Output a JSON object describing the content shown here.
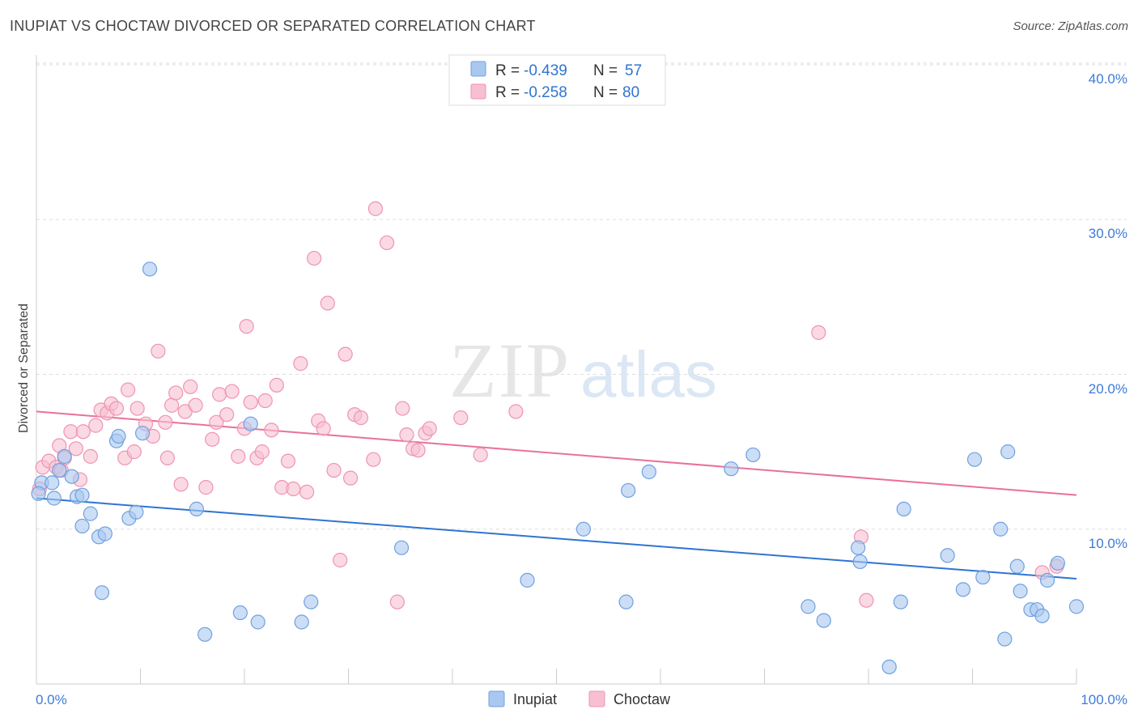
{
  "header": {
    "title": "INUPIAT VS CHOCTAW DIVORCED OR SEPARATED CORRELATION CHART",
    "source": "Source: ZipAtlas.com"
  },
  "watermark": {
    "zip": "ZIP",
    "atlas": "atlas"
  },
  "colors": {
    "inupiat_fill": "#a9c8f0",
    "inupiat_stroke": "#6fa0e0",
    "inupiat_line": "#2f74d0",
    "choctaw_fill": "#f7bfd1",
    "choctaw_stroke": "#ef93b2",
    "choctaw_line": "#e8719a",
    "tick_label": "#3d7bd8",
    "grid": "#dddddd"
  },
  "legend_top": {
    "rows": [
      {
        "r_label": "R =",
        "r_value": "-0.439",
        "n_label": "N =",
        "n_value": "57"
      },
      {
        "r_label": "R =",
        "r_value": "-0.258",
        "n_label": "N =",
        "n_value": "80"
      }
    ]
  },
  "chart_data": {
    "type": "scatter",
    "title": "INUPIAT VS CHOCTAW DIVORCED OR SEPARATED CORRELATION CHART",
    "xlabel": "",
    "ylabel": "Divorced or Separated",
    "xlim": [
      0,
      100
    ],
    "ylim": [
      0,
      40.8
    ],
    "x_tick_labels": [
      "0.0%",
      "100.0%"
    ],
    "y_ticks": [
      10,
      20,
      30,
      40
    ],
    "y_tick_labels": [
      "10.0%",
      "20.0%",
      "30.0%",
      "40.0%"
    ],
    "grid": true,
    "legend": [
      "Inupiat",
      "Choctaw"
    ],
    "legend_position": "bottom-center",
    "series": [
      {
        "name": "Inupiat",
        "r": -0.439,
        "n": 57,
        "trend": {
          "x": [
            0,
            100
          ],
          "y": [
            12.0,
            6.8
          ]
        },
        "points": [
          [
            0.5,
            13.0
          ],
          [
            1.5,
            13.0
          ],
          [
            1.7,
            12.0
          ],
          [
            2.2,
            13.8
          ],
          [
            2.7,
            14.7
          ],
          [
            3.4,
            13.4
          ],
          [
            3.9,
            12.1
          ],
          [
            4.4,
            12.2
          ],
          [
            4.4,
            10.2
          ],
          [
            5.2,
            11.0
          ],
          [
            6.0,
            9.5
          ],
          [
            6.3,
            5.9
          ],
          [
            6.6,
            9.7
          ],
          [
            7.7,
            15.7
          ],
          [
            7.9,
            16.0
          ],
          [
            8.9,
            10.7
          ],
          [
            9.6,
            11.1
          ],
          [
            10.2,
            16.2
          ],
          [
            10.9,
            26.8
          ],
          [
            15.4,
            11.3
          ],
          [
            16.2,
            3.2
          ],
          [
            19.6,
            4.6
          ],
          [
            20.6,
            16.8
          ],
          [
            21.3,
            4.0
          ],
          [
            25.5,
            4.0
          ],
          [
            26.4,
            5.3
          ],
          [
            35.1,
            8.8
          ],
          [
            47.2,
            6.7
          ],
          [
            52.6,
            10.0
          ],
          [
            56.7,
            5.3
          ],
          [
            56.9,
            12.5
          ],
          [
            58.9,
            13.7
          ],
          [
            66.8,
            13.9
          ],
          [
            68.9,
            14.8
          ],
          [
            74.2,
            5.0
          ],
          [
            75.7,
            4.1
          ],
          [
            79.0,
            8.8
          ],
          [
            79.2,
            7.9
          ],
          [
            82.0,
            1.1
          ],
          [
            83.1,
            5.3
          ],
          [
            83.4,
            11.3
          ],
          [
            87.6,
            8.3
          ],
          [
            89.1,
            6.1
          ],
          [
            90.2,
            14.5
          ],
          [
            91.0,
            6.9
          ],
          [
            92.7,
            10.0
          ],
          [
            93.1,
            2.9
          ],
          [
            93.4,
            15.0
          ],
          [
            94.3,
            7.6
          ],
          [
            94.6,
            6.0
          ],
          [
            95.6,
            4.8
          ],
          [
            96.2,
            4.8
          ],
          [
            96.7,
            4.4
          ],
          [
            97.2,
            6.7
          ],
          [
            98.2,
            7.8
          ],
          [
            100.0,
            5.0
          ],
          [
            0.2,
            12.3
          ]
        ]
      },
      {
        "name": "Choctaw",
        "r": -0.258,
        "n": 80,
        "trend": {
          "x": [
            0,
            100
          ],
          "y": [
            17.6,
            12.2
          ]
        },
        "points": [
          [
            0.3,
            12.6
          ],
          [
            0.6,
            14.0
          ],
          [
            1.2,
            14.4
          ],
          [
            1.9,
            14.0
          ],
          [
            2.2,
            15.4
          ],
          [
            2.4,
            13.8
          ],
          [
            2.7,
            14.6
          ],
          [
            3.3,
            16.3
          ],
          [
            3.8,
            15.2
          ],
          [
            4.2,
            13.2
          ],
          [
            4.5,
            16.3
          ],
          [
            5.2,
            14.7
          ],
          [
            5.7,
            16.7
          ],
          [
            6.2,
            17.7
          ],
          [
            6.8,
            17.5
          ],
          [
            7.2,
            18.1
          ],
          [
            7.7,
            17.8
          ],
          [
            8.5,
            14.6
          ],
          [
            8.8,
            19.0
          ],
          [
            9.4,
            15.0
          ],
          [
            9.7,
            17.8
          ],
          [
            10.5,
            16.8
          ],
          [
            11.2,
            16.0
          ],
          [
            11.7,
            21.5
          ],
          [
            12.4,
            16.9
          ],
          [
            12.6,
            14.6
          ],
          [
            13.0,
            18.0
          ],
          [
            13.4,
            18.8
          ],
          [
            13.9,
            12.9
          ],
          [
            14.3,
            17.6
          ],
          [
            14.8,
            19.2
          ],
          [
            15.3,
            18.0
          ],
          [
            16.3,
            12.7
          ],
          [
            16.9,
            15.8
          ],
          [
            17.3,
            16.9
          ],
          [
            17.6,
            18.7
          ],
          [
            18.3,
            17.4
          ],
          [
            18.8,
            18.9
          ],
          [
            19.4,
            14.7
          ],
          [
            20.0,
            16.5
          ],
          [
            20.2,
            23.1
          ],
          [
            20.6,
            18.2
          ],
          [
            21.2,
            14.6
          ],
          [
            21.7,
            15.0
          ],
          [
            22.0,
            18.3
          ],
          [
            22.6,
            16.4
          ],
          [
            23.1,
            19.3
          ],
          [
            23.6,
            12.7
          ],
          [
            24.2,
            14.4
          ],
          [
            24.7,
            12.6
          ],
          [
            25.4,
            20.7
          ],
          [
            26.0,
            12.4
          ],
          [
            26.7,
            27.5
          ],
          [
            27.1,
            17.0
          ],
          [
            27.6,
            16.5
          ],
          [
            28.0,
            24.6
          ],
          [
            28.6,
            13.8
          ],
          [
            29.2,
            8.0
          ],
          [
            29.7,
            21.3
          ],
          [
            30.2,
            13.3
          ],
          [
            30.6,
            17.4
          ],
          [
            31.2,
            17.2
          ],
          [
            32.4,
            14.5
          ],
          [
            32.6,
            30.7
          ],
          [
            33.7,
            28.5
          ],
          [
            34.7,
            5.3
          ],
          [
            35.2,
            17.8
          ],
          [
            35.6,
            16.1
          ],
          [
            36.2,
            15.2
          ],
          [
            36.7,
            15.1
          ],
          [
            37.4,
            16.2
          ],
          [
            37.8,
            16.5
          ],
          [
            40.8,
            17.2
          ],
          [
            42.7,
            14.8
          ],
          [
            46.1,
            17.6
          ],
          [
            75.2,
            22.7
          ],
          [
            79.3,
            9.5
          ],
          [
            79.8,
            5.4
          ],
          [
            96.7,
            7.2
          ],
          [
            98.1,
            7.6
          ]
        ]
      }
    ]
  }
}
